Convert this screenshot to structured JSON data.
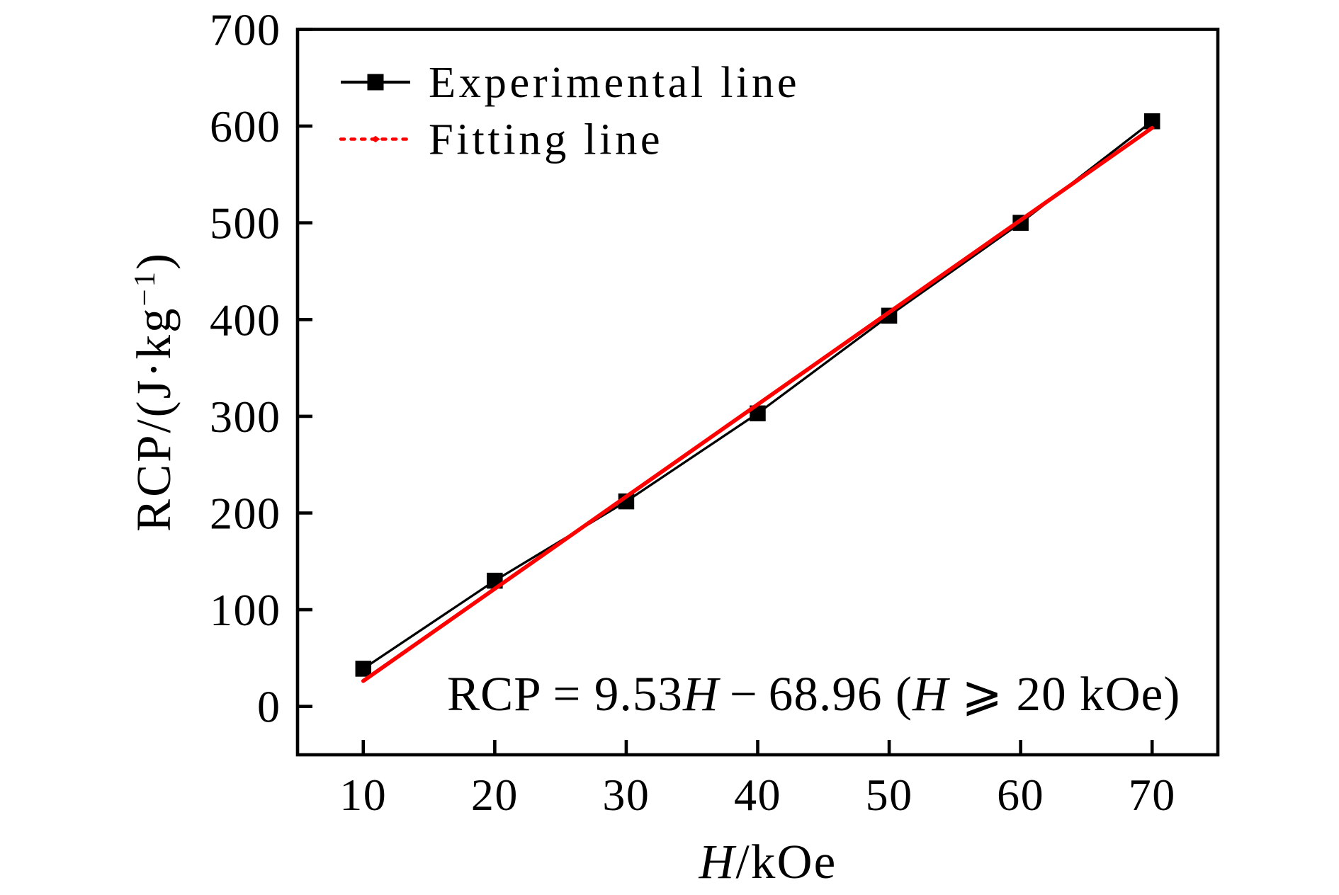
{
  "figure": {
    "background": "#ffffff",
    "frame_color": "#000000"
  },
  "chart_data": {
    "type": "line",
    "title": "",
    "xlabel": "H/kOe",
    "ylabel": "RCP/(J·kg⁻¹)",
    "xlim": [
      5,
      75
    ],
    "ylim": [
      -50,
      700
    ],
    "x_ticks": [
      10,
      20,
      30,
      40,
      50,
      60,
      70
    ],
    "y_ticks": [
      0,
      100,
      200,
      300,
      400,
      500,
      600,
      700
    ],
    "grid": false,
    "legend_position": "upper left",
    "series": [
      {
        "name": "Experimental line",
        "color": "#000000",
        "marker": "square",
        "marker_size": 22.5,
        "line_width": 3.3,
        "x": [
          10,
          20,
          30,
          40,
          50,
          60,
          70
        ],
        "y": [
          39,
          130,
          212,
          303,
          404,
          500,
          605
        ]
      },
      {
        "name": "Fitting line",
        "color": "#ff0000",
        "marker": "none",
        "line_width": 5.6,
        "equation": "RCP = 9.53H - 68.96",
        "slope": 9.53,
        "intercept": -68.96,
        "x_start": 10,
        "x_end": 70
      }
    ],
    "annotation": "RCP = 9.53H − 68.96 (H ⩾ 20 kOe)"
  },
  "legend": {
    "items": [
      {
        "label": "Experimental line",
        "color": "#000000",
        "style": "solid-square-marker"
      },
      {
        "label": "Fitting line",
        "color": "#ff0000",
        "style": "dashed-dot-marker"
      }
    ]
  },
  "annotation_segments": [
    {
      "t": "RCP = 9.53"
    },
    {
      "t": "H",
      "i": true
    },
    {
      "t": " − 68.96 ("
    },
    {
      "t": "H",
      "i": true
    },
    {
      "t": " ⩾ 20 kOe)"
    }
  ],
  "x_title_segments": [
    {
      "t": "H",
      "i": true
    },
    {
      "t": "/kOe"
    }
  ],
  "y_title_segments": [
    {
      "t": "RCP/(J·kg"
    },
    {
      "t": "−1",
      "sup": true
    },
    {
      "t": ")"
    }
  ]
}
